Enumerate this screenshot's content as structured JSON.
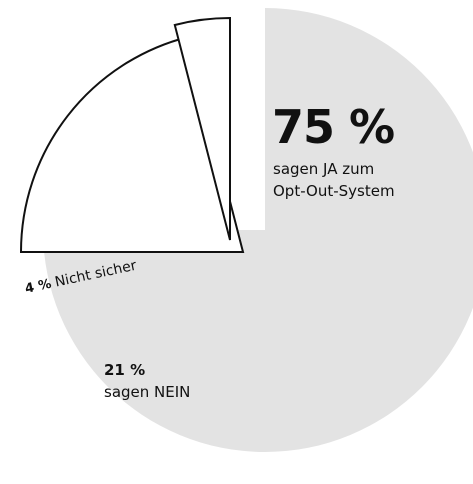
{
  "chart_data": {
    "type": "pie",
    "title": "",
    "slices": [
      {
        "label": "sagen JA zum Opt-Out-System",
        "value": 75,
        "display": "75 %",
        "label_lines": [
          "sagen JA zum",
          "Opt-Out-System"
        ],
        "color": "#e3e3e3"
      },
      {
        "label": "sagen NEIN",
        "value": 21,
        "display": "21 %",
        "label_lines": [
          "sagen NEIN"
        ],
        "color": "#ffffff"
      },
      {
        "label": "Nicht sicher",
        "value": 4,
        "display": "4 %",
        "label_lines": [
          "Nicht sicher"
        ],
        "color": "#ffffff"
      }
    ],
    "colors": {
      "outline": "#111111"
    }
  }
}
